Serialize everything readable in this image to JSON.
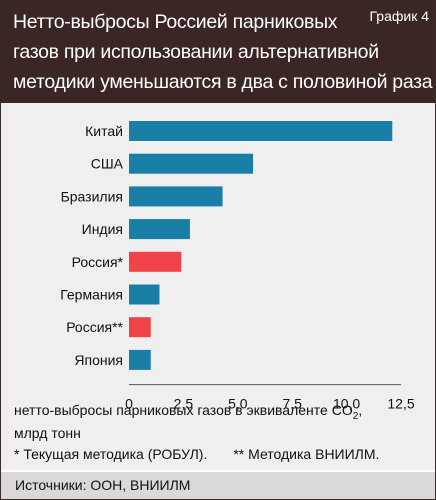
{
  "header": {
    "title_lines": [
      "Нетто-выбросы Россией парниковых",
      "газов при использовании альтернативной",
      "методики уменьшаются в два с половиной раза"
    ],
    "graph_label": "График 4"
  },
  "colors": {
    "header_bg": "#3a2624",
    "bar_default": "#1a7fa6",
    "bar_highlight": "#f0444a",
    "plot_bg": "#efefef",
    "source_bg": "#d9d9d9"
  },
  "chart_data": {
    "type": "bar",
    "orientation": "horizontal",
    "categories": [
      "Китай",
      "США",
      "Бразилия",
      "Индия",
      "Россия*",
      "Германия",
      "Россия**",
      "Япония"
    ],
    "values": [
      12.1,
      5.7,
      4.3,
      2.8,
      2.4,
      1.4,
      1.0,
      1.0
    ],
    "highlight": [
      false,
      false,
      false,
      false,
      true,
      false,
      true,
      false
    ],
    "xlim": [
      0,
      12.5
    ],
    "xticks": [
      "0",
      "2,5",
      "5,0",
      "7,5",
      "10,0",
      "12,5"
    ],
    "xtick_values": [
      0,
      2.5,
      5.0,
      7.5,
      10.0,
      12.5
    ],
    "xlabel_main": "нетто-выбросы парниковых газов в эквиваленте CO",
    "xlabel_sub": "2",
    "xlabel_tail": ",",
    "xlabel_line2": "млрд тонн",
    "grid": false
  },
  "notes": {
    "note1": "* Текущая методика (РОБУЛ).",
    "note2": "** Методика ВНИИЛМ."
  },
  "source": "Источники: ООН, ВНИИЛМ"
}
